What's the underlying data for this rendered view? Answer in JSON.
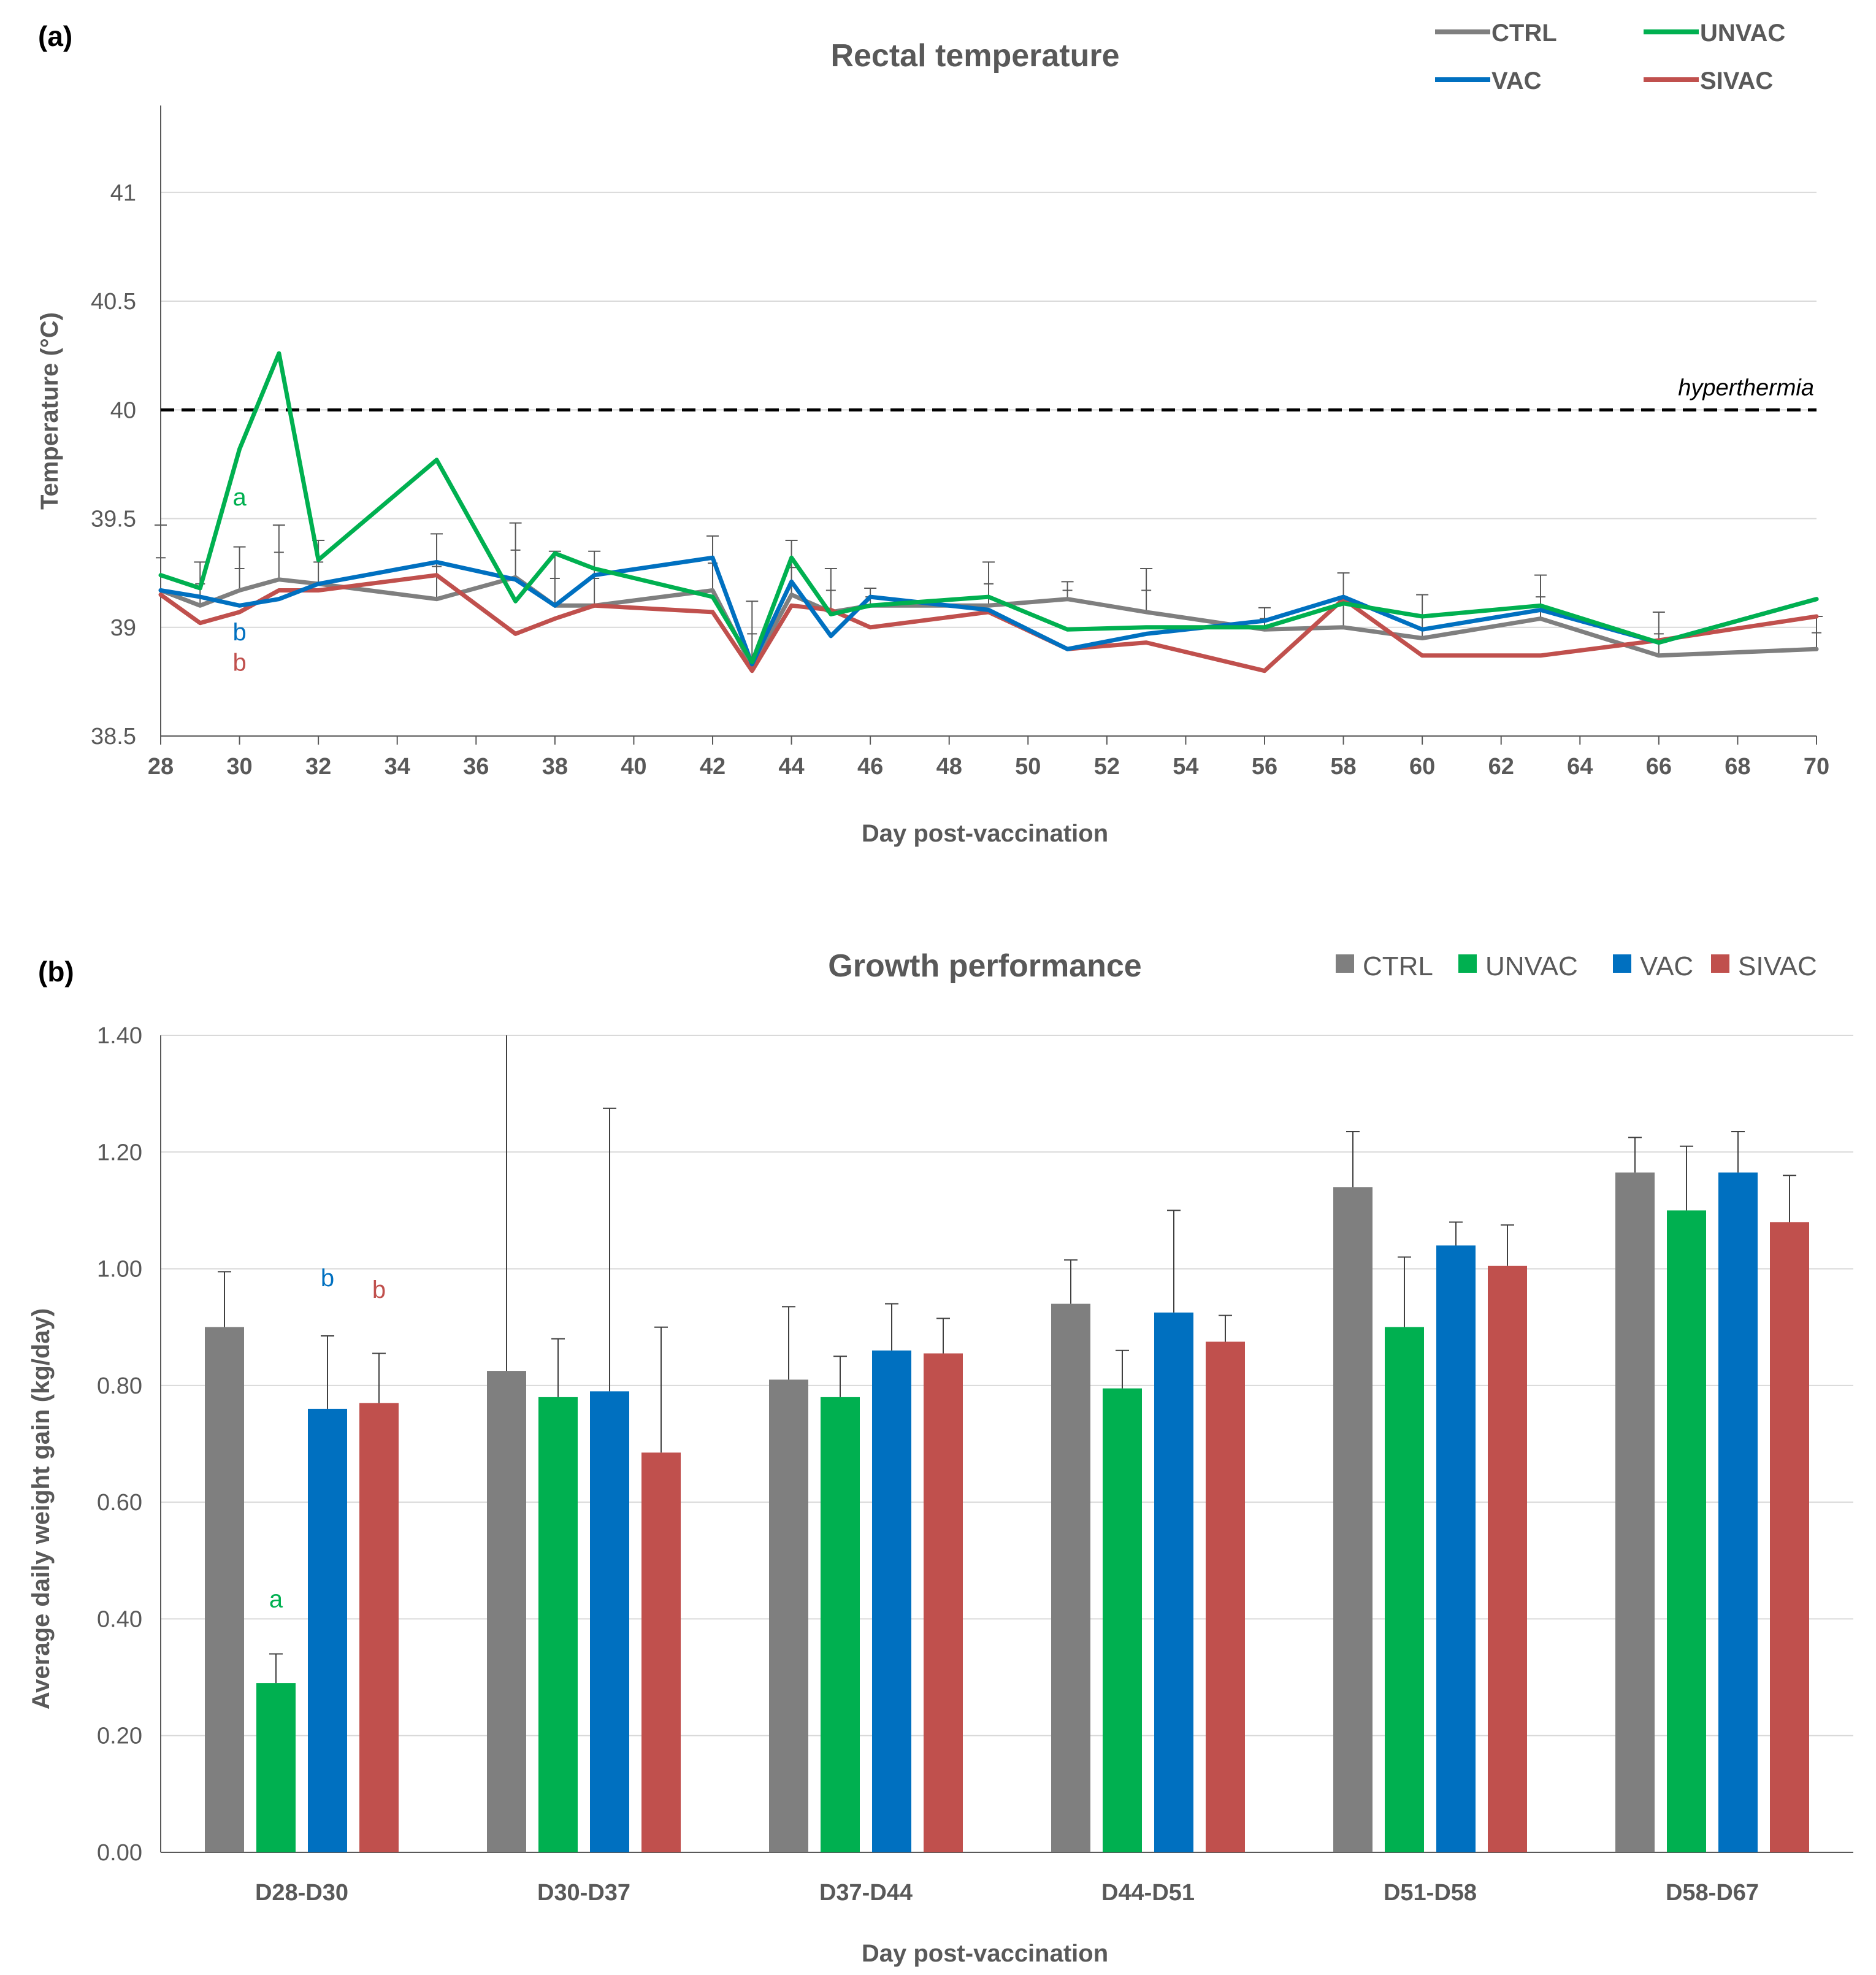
{
  "colors": {
    "CTRL": "#7f7f7f",
    "UNVAC": "#00b050",
    "VAC": "#0070c0",
    "SIVAC": "#c0504d",
    "grid": "#d9d9d9",
    "axis": "#595959"
  },
  "panels": {
    "a_label": "(a)",
    "b_label": "(b)"
  },
  "chart_data": [
    {
      "type": "line",
      "title": "Rectal temperature",
      "xlabel": "Day post-vaccination",
      "ylabel": "Temperature (°C)",
      "xlim": [
        28,
        70
      ],
      "ylim": [
        38.5,
        41.4
      ],
      "xticks": [
        28,
        30,
        32,
        34,
        36,
        38,
        40,
        42,
        44,
        46,
        48,
        50,
        52,
        54,
        56,
        58,
        60,
        62,
        64,
        66,
        68,
        70
      ],
      "yticks": [
        38.5,
        39,
        39.5,
        40,
        40.5,
        41
      ],
      "ytick_labels": [
        "38.5",
        "39",
        "39.5",
        "40",
        "40.5",
        "41"
      ],
      "grid": true,
      "legend_placement": "top-right",
      "series": [
        {
          "name": "CTRL",
          "x": [
            28,
            29,
            30,
            31,
            32,
            35,
            37,
            38,
            39,
            42,
            43,
            44,
            45,
            46,
            49,
            51,
            53,
            56,
            58,
            60,
            63,
            66,
            70
          ],
          "y": [
            39.17,
            39.1,
            39.17,
            39.22,
            39.2,
            39.13,
            39.23,
            39.1,
            39.1,
            39.17,
            38.82,
            39.15,
            39.07,
            39.1,
            39.1,
            39.13,
            39.07,
            38.99,
            39.0,
            38.95,
            39.04,
            38.87,
            38.9
          ],
          "err": [
            0.3,
            0.2,
            0.2,
            0.25,
            0.2,
            0.3,
            0.25,
            0.25,
            0.25,
            0.25,
            0.3,
            0.25,
            0.2,
            0.08,
            0.2,
            0.08,
            0.2,
            0.1,
            0.25,
            0.2,
            0.2,
            0.2,
            0.15
          ]
        },
        {
          "name": "UNVAC",
          "x": [
            28,
            29,
            30,
            31,
            32,
            35,
            37,
            38,
            39,
            42,
            43,
            44,
            45,
            46,
            49,
            51,
            53,
            56,
            58,
            60,
            63,
            66,
            70
          ],
          "y": [
            39.24,
            39.18,
            39.82,
            40.26,
            39.31,
            39.77,
            39.12,
            39.34,
            39.27,
            39.14,
            38.84,
            39.32,
            39.06,
            39.1,
            39.14,
            38.99,
            39.0,
            39.0,
            39.11,
            39.05,
            39.1,
            38.93,
            39.13
          ]
        },
        {
          "name": "VAC",
          "x": [
            28,
            29,
            30,
            31,
            32,
            35,
            37,
            38,
            39,
            42,
            43,
            44,
            45,
            46,
            49,
            51,
            53,
            56,
            58,
            60,
            63,
            66,
            70
          ],
          "y": [
            39.17,
            39.14,
            39.1,
            39.13,
            39.2,
            39.3,
            39.22,
            39.1,
            39.24,
            39.32,
            38.83,
            39.21,
            38.96,
            39.14,
            39.08,
            38.9,
            38.97,
            39.03,
            39.14,
            38.99,
            39.08,
            38.93,
            39.13
          ]
        },
        {
          "name": "SIVAC",
          "x": [
            28,
            29,
            30,
            31,
            32,
            35,
            37,
            38,
            39,
            42,
            43,
            44,
            45,
            46,
            49,
            51,
            53,
            56,
            58,
            60,
            63,
            66,
            70
          ],
          "y": [
            39.15,
            39.02,
            39.07,
            39.17,
            39.17,
            39.24,
            38.97,
            39.04,
            39.1,
            39.07,
            38.8,
            39.1,
            39.08,
            39.0,
            39.07,
            38.9,
            38.93,
            38.8,
            39.13,
            38.87,
            38.87,
            38.94,
            39.05
          ]
        }
      ],
      "reference_line": {
        "y": 40,
        "label": "hyperthermia"
      },
      "annotations": [
        {
          "text": "a",
          "x": 30,
          "y": 39.56,
          "series": "UNVAC"
        },
        {
          "text": "b",
          "x": 30,
          "y": 38.94,
          "series": "VAC"
        },
        {
          "text": "b",
          "x": 30,
          "y": 38.8,
          "series": "SIVAC"
        }
      ]
    },
    {
      "type": "bar",
      "title": "Growth performance",
      "xlabel": "Day post-vaccination",
      "ylabel": "Average daily weight gain (kg/day)",
      "ylim": [
        0,
        1.4
      ],
      "yticks": [
        0,
        0.2,
        0.4,
        0.6,
        0.8,
        1.0,
        1.2,
        1.4
      ],
      "ytick_labels": [
        "0.00",
        "0.20",
        "0.40",
        "0.60",
        "0.80",
        "1.00",
        "1.20",
        "1.40"
      ],
      "grid": true,
      "legend_placement": "top-right",
      "categories": [
        "D28-D30",
        "D30-D37",
        "D37-D44",
        "D44-D51",
        "D51-D58",
        "D58-D67"
      ],
      "series": [
        {
          "name": "CTRL",
          "values": [
            0.9,
            0.825,
            0.81,
            0.94,
            1.14,
            1.165
          ],
          "err": [
            0.095,
            0.6,
            0.125,
            0.075,
            0.095,
            0.06
          ]
        },
        {
          "name": "UNVAC",
          "values": [
            0.29,
            0.78,
            0.78,
            0.795,
            0.9,
            1.1
          ],
          "err": [
            0.05,
            0.1,
            0.07,
            0.065,
            0.12,
            0.11
          ]
        },
        {
          "name": "VAC",
          "values": [
            0.76,
            0.79,
            0.86,
            0.925,
            1.04,
            1.165
          ],
          "err": [
            0.125,
            0.485,
            0.08,
            0.175,
            0.04,
            0.07
          ]
        },
        {
          "name": "SIVAC",
          "values": [
            0.77,
            0.685,
            0.855,
            0.875,
            1.005,
            1.08
          ],
          "err": [
            0.085,
            0.215,
            0.06,
            0.045,
            0.07,
            0.08
          ]
        }
      ],
      "annotations": [
        {
          "text": "a",
          "category": "D28-D30",
          "series": "UNVAC",
          "y": 0.42
        },
        {
          "text": "b",
          "category": "D28-D30",
          "series": "VAC",
          "y": 0.97
        },
        {
          "text": "b",
          "category": "D28-D30",
          "series": "SIVAC",
          "y": 0.95
        }
      ]
    }
  ]
}
